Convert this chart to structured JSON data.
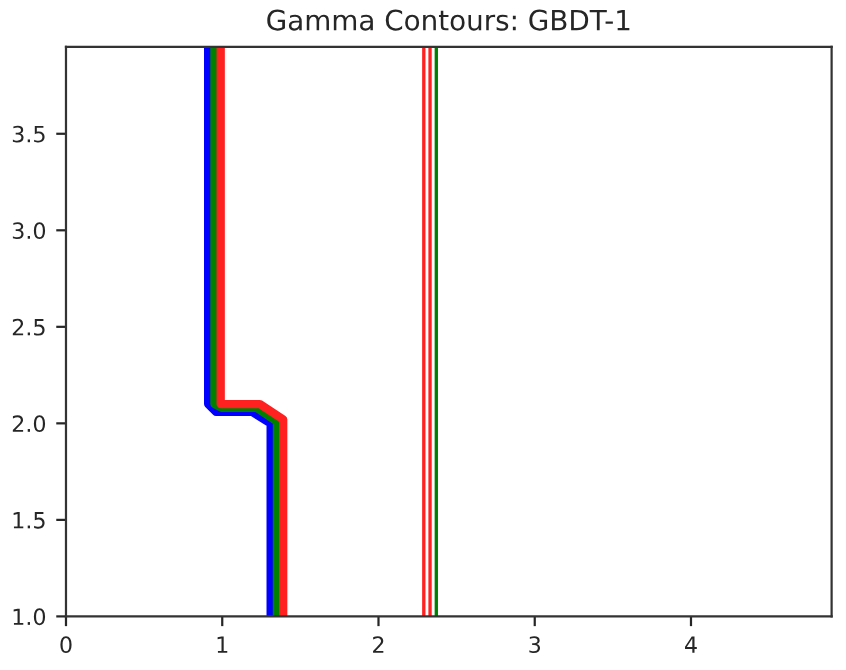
{
  "chart_data": {
    "type": "line",
    "title": "Gamma Contours: GBDT-1",
    "series": [
      {
        "color": "#0000ff",
        "x": [
          0.91,
          0.91,
          0.96,
          1.19,
          1.31,
          1.31
        ],
        "values": [
          3.95,
          2.1,
          2.06,
          2.06,
          2.0,
          1.0
        ]
      },
      {
        "color": "#008000",
        "x": [
          0.95,
          0.95,
          1.0,
          1.22,
          1.35,
          1.35
        ],
        "values": [
          3.95,
          2.1,
          2.08,
          2.08,
          2.01,
          1.0
        ]
      },
      {
        "color": "#ff2020",
        "x": [
          0.99,
          0.99,
          1.02,
          1.24,
          1.39,
          1.39
        ],
        "values": [
          3.95,
          2.1,
          2.1,
          2.1,
          2.02,
          1.0
        ]
      },
      {
        "color": "#ff2020",
        "x": [
          2.29,
          2.29
        ],
        "values": [
          3.95,
          1.0
        ]
      },
      {
        "color": "#ff2020",
        "x": [
          2.33,
          2.33
        ],
        "values": [
          3.95,
          1.0
        ]
      },
      {
        "color": "#008000",
        "x": [
          2.37,
          2.37
        ],
        "values": [
          3.95,
          1.0
        ]
      }
    ],
    "xlim": [
      0,
      4.9
    ],
    "ylim": [
      1.0,
      3.95
    ],
    "xticks": [
      0,
      1,
      2,
      3,
      4
    ],
    "yticks": [
      {
        "value": 1.0,
        "label": "1.0"
      },
      {
        "value": 1.5,
        "label": "1.5"
      },
      {
        "value": 2.0,
        "label": "2.0"
      },
      {
        "value": 2.5,
        "label": "2.5"
      },
      {
        "value": 3.0,
        "label": "3.0"
      },
      {
        "value": 3.5,
        "label": "3.5"
      }
    ],
    "marker": "none",
    "line_style": "solid",
    "grid": false,
    "legend": false
  }
}
